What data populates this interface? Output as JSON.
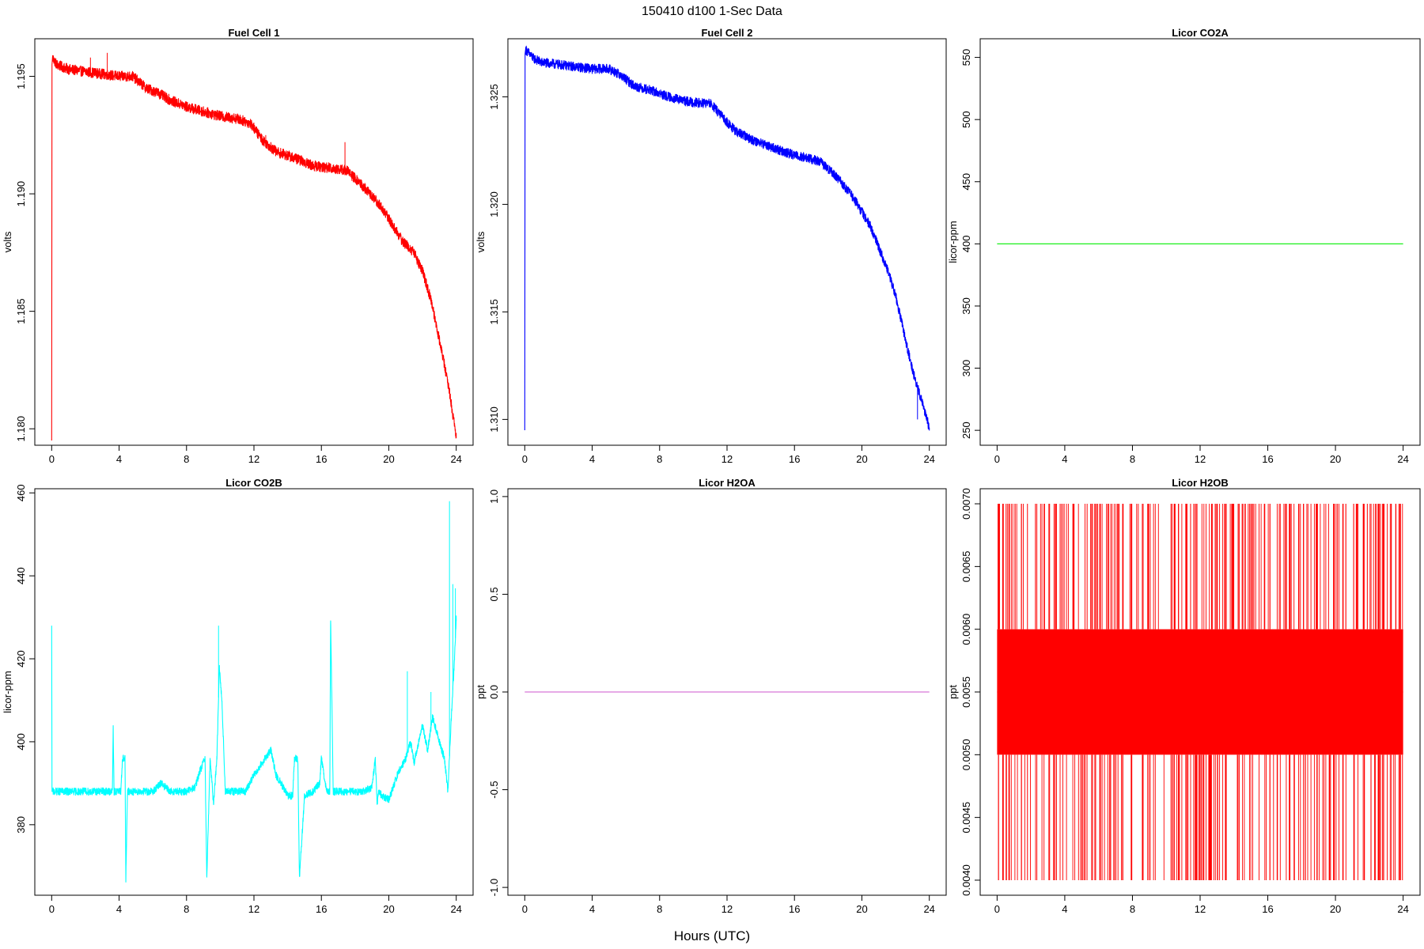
{
  "figure": {
    "title": "150410   d100   1-Sec Data",
    "shared_xlabel": "Hours (UTC)"
  },
  "chart_data": [
    {
      "type": "line",
      "title": "Fuel Cell 1",
      "xlabel": "",
      "ylabel": "volts",
      "xlim": [
        -1,
        25
      ],
      "ylim": [
        1.1793,
        1.1966
      ],
      "xticks": [
        0,
        4,
        8,
        12,
        16,
        20,
        24
      ],
      "yticks": [
        1.18,
        1.185,
        1.19,
        1.195
      ],
      "ytick_labels": [
        "1.180",
        "1.185",
        "1.190",
        "1.195"
      ],
      "color": "#ff0000",
      "noise": 0.00022,
      "series": [
        {
          "x": [
            0,
            0.02,
            0.05,
            0.3,
            1,
            2,
            3,
            4,
            4.8,
            5.3,
            5.6,
            6.3,
            7,
            8,
            9,
            10,
            11,
            11.8,
            12.5,
            13.3,
            14.5,
            15.5,
            16.5,
            17.5,
            18.5,
            19.5,
            20.2,
            20.8,
            21.5,
            22,
            22.5,
            23,
            23.5,
            24
          ],
          "y": [
            1.1795,
            1.1955,
            1.1958,
            1.1955,
            1.1953,
            1.1952,
            1.1951,
            1.195,
            1.195,
            1.1947,
            1.1945,
            1.1943,
            1.194,
            1.1937,
            1.1935,
            1.1933,
            1.1932,
            1.193,
            1.1923,
            1.1918,
            1.1915,
            1.1912,
            1.1911,
            1.191,
            1.1903,
            1.1895,
            1.1887,
            1.188,
            1.1875,
            1.1867,
            1.1855,
            1.1838,
            1.182,
            1.1797
          ]
        }
      ],
      "spikes": [
        [
          3.3,
          1.196
        ],
        [
          17.4,
          1.1922
        ],
        [
          22.1,
          1.1865
        ],
        [
          12.7,
          1.1925
        ],
        [
          2.3,
          1.1958
        ]
      ]
    },
    {
      "type": "line",
      "title": "Fuel Cell 2",
      "xlabel": "",
      "ylabel": "volts",
      "xlim": [
        -1,
        25
      ],
      "ylim": [
        1.3088,
        1.3277
      ],
      "xticks": [
        0,
        4,
        8,
        12,
        16,
        20,
        24
      ],
      "yticks": [
        1.31,
        1.315,
        1.32,
        1.325
      ],
      "ytick_labels": [
        "1.310",
        "1.315",
        "1.320",
        "1.325"
      ],
      "color": "#0000ff",
      "noise": 0.00022,
      "series": [
        {
          "x": [
            0,
            0.02,
            0.05,
            0.5,
            1,
            2,
            3,
            4,
            5,
            5.7,
            6.5,
            7.5,
            8.5,
            9.5,
            10.5,
            11,
            11.8,
            12.5,
            13.5,
            14.5,
            15.5,
            16.5,
            17.5,
            18.5,
            19.5,
            20.5,
            21.5,
            22,
            22.5,
            23,
            23.5,
            24
          ],
          "y": [
            1.3095,
            1.327,
            1.3272,
            1.3268,
            1.3266,
            1.3265,
            1.3264,
            1.3263,
            1.3263,
            1.326,
            1.3255,
            1.3253,
            1.325,
            1.3248,
            1.3247,
            1.3247,
            1.324,
            1.3234,
            1.323,
            1.3227,
            1.3224,
            1.3222,
            1.322,
            1.3213,
            1.3203,
            1.319,
            1.317,
            1.3158,
            1.314,
            1.3123,
            1.311,
            1.3096
          ]
        }
      ],
      "spikes": [
        [
          23.3,
          1.31
        ]
      ]
    },
    {
      "type": "line",
      "title": "Licor CO2A",
      "xlabel": "",
      "ylabel": "licor-ppm",
      "xlim": [
        -1,
        25
      ],
      "ylim": [
        238,
        565
      ],
      "xticks": [
        0,
        4,
        8,
        12,
        16,
        20,
        24
      ],
      "yticks": [
        250,
        300,
        350,
        400,
        450,
        500,
        550
      ],
      "ytick_labels": [
        "250",
        "300",
        "350",
        "400",
        "450",
        "500",
        "550"
      ],
      "color": "#00ee00",
      "noise": 0,
      "series": [
        {
          "x": [
            0,
            24
          ],
          "y": [
            400,
            400
          ]
        }
      ],
      "spikes": []
    },
    {
      "type": "line",
      "title": "Licor CO2B",
      "xlabel": "",
      "ylabel": "licor-ppm",
      "xlim": [
        -1,
        25
      ],
      "ylim": [
        363,
        461
      ],
      "xticks": [
        0,
        4,
        8,
        12,
        16,
        20,
        24
      ],
      "yticks": [
        380,
        400,
        420,
        440,
        460
      ],
      "ytick_labels": [
        "380",
        "400",
        "420",
        "440",
        "460"
      ],
      "color": "#00ffff",
      "noise": 0.9,
      "series": [
        {
          "x": [
            0,
            0.02,
            0.05,
            1,
            2,
            3,
            3.6,
            3.65,
            3.7,
            4.1,
            4.2,
            4.35,
            4.4,
            4.5,
            5,
            6,
            6.5,
            7,
            8,
            8.5,
            8.8,
            9.1,
            9.2,
            9.4,
            9.6,
            9.8,
            9.95,
            10.1,
            10.3,
            10.8,
            11.5,
            12,
            12.5,
            13,
            13.3,
            13.6,
            14,
            14.3,
            14.4,
            14.6,
            14.7,
            15,
            15.5,
            15.9,
            16,
            16.3,
            16.5,
            16.55,
            16.7,
            17.5,
            18.5,
            19,
            19.2,
            19.3,
            19.4,
            19.6,
            20,
            20.5,
            21,
            21.3,
            21.5,
            22,
            22.3,
            22.6,
            23,
            23.3,
            23.5,
            23.7,
            23.9,
            24
          ],
          "y": [
            428,
            388,
            388,
            388,
            388,
            388,
            388,
            403,
            388,
            388,
            396,
            396,
            367,
            388,
            388,
            388,
            390,
            388,
            388,
            389,
            393,
            396,
            367,
            396,
            385,
            396,
            418,
            410,
            388,
            388,
            388,
            392,
            395,
            398,
            392,
            390,
            387,
            387,
            396,
            396,
            367,
            387,
            388,
            390,
            396,
            388,
            388,
            430,
            388,
            388,
            388,
            389,
            396,
            385,
            388,
            387,
            386,
            392,
            396,
            400,
            395,
            404,
            398,
            406,
            400,
            396,
            388,
            405,
            420,
            430
          ]
        }
      ],
      "spikes": [
        [
          23.6,
          458
        ],
        [
          23.8,
          438
        ],
        [
          23.95,
          437
        ],
        [
          21.1,
          417
        ],
        [
          22.5,
          412
        ],
        [
          9.9,
          428
        ]
      ]
    },
    {
      "type": "line",
      "title": "Licor H2OA",
      "xlabel": "",
      "ylabel": "ppt",
      "xlim": [
        -1,
        25
      ],
      "ylim": [
        -1.04,
        1.04
      ],
      "xticks": [
        0,
        4,
        8,
        12,
        16,
        20,
        24
      ],
      "yticks": [
        -1.0,
        -0.5,
        0.0,
        0.5,
        1.0
      ],
      "ytick_labels": [
        "-1.0",
        "-0.5",
        "0.0",
        "0.5",
        "1.0"
      ],
      "color": "#cc55cc",
      "noise": 0,
      "series": [
        {
          "x": [
            0,
            24
          ],
          "y": [
            0,
            0
          ]
        }
      ],
      "spikes": []
    },
    {
      "type": "line",
      "title": "Licor H2OB",
      "xlabel": "",
      "ylabel": "ppt",
      "xlim": [
        -1,
        25
      ],
      "ylim": [
        0.00388,
        0.00712
      ],
      "xticks": [
        0,
        4,
        8,
        12,
        16,
        20,
        24
      ],
      "yticks": [
        0.004,
        0.0045,
        0.005,
        0.0055,
        0.006,
        0.0065,
        0.007
      ],
      "ytick_labels": [
        "0.0040",
        "0.0045",
        "0.0050",
        "0.0055",
        "0.0060",
        "0.0065",
        "0.0070"
      ],
      "color": "#ff0000",
      "noise": 0,
      "series": [
        {
          "x": [
            0,
            24
          ],
          "y": [
            0.0055,
            0.0055
          ]
        }
      ],
      "band": [
        0.005,
        0.006
      ],
      "high": 0.007,
      "low": 0.004,
      "spikes": []
    }
  ]
}
